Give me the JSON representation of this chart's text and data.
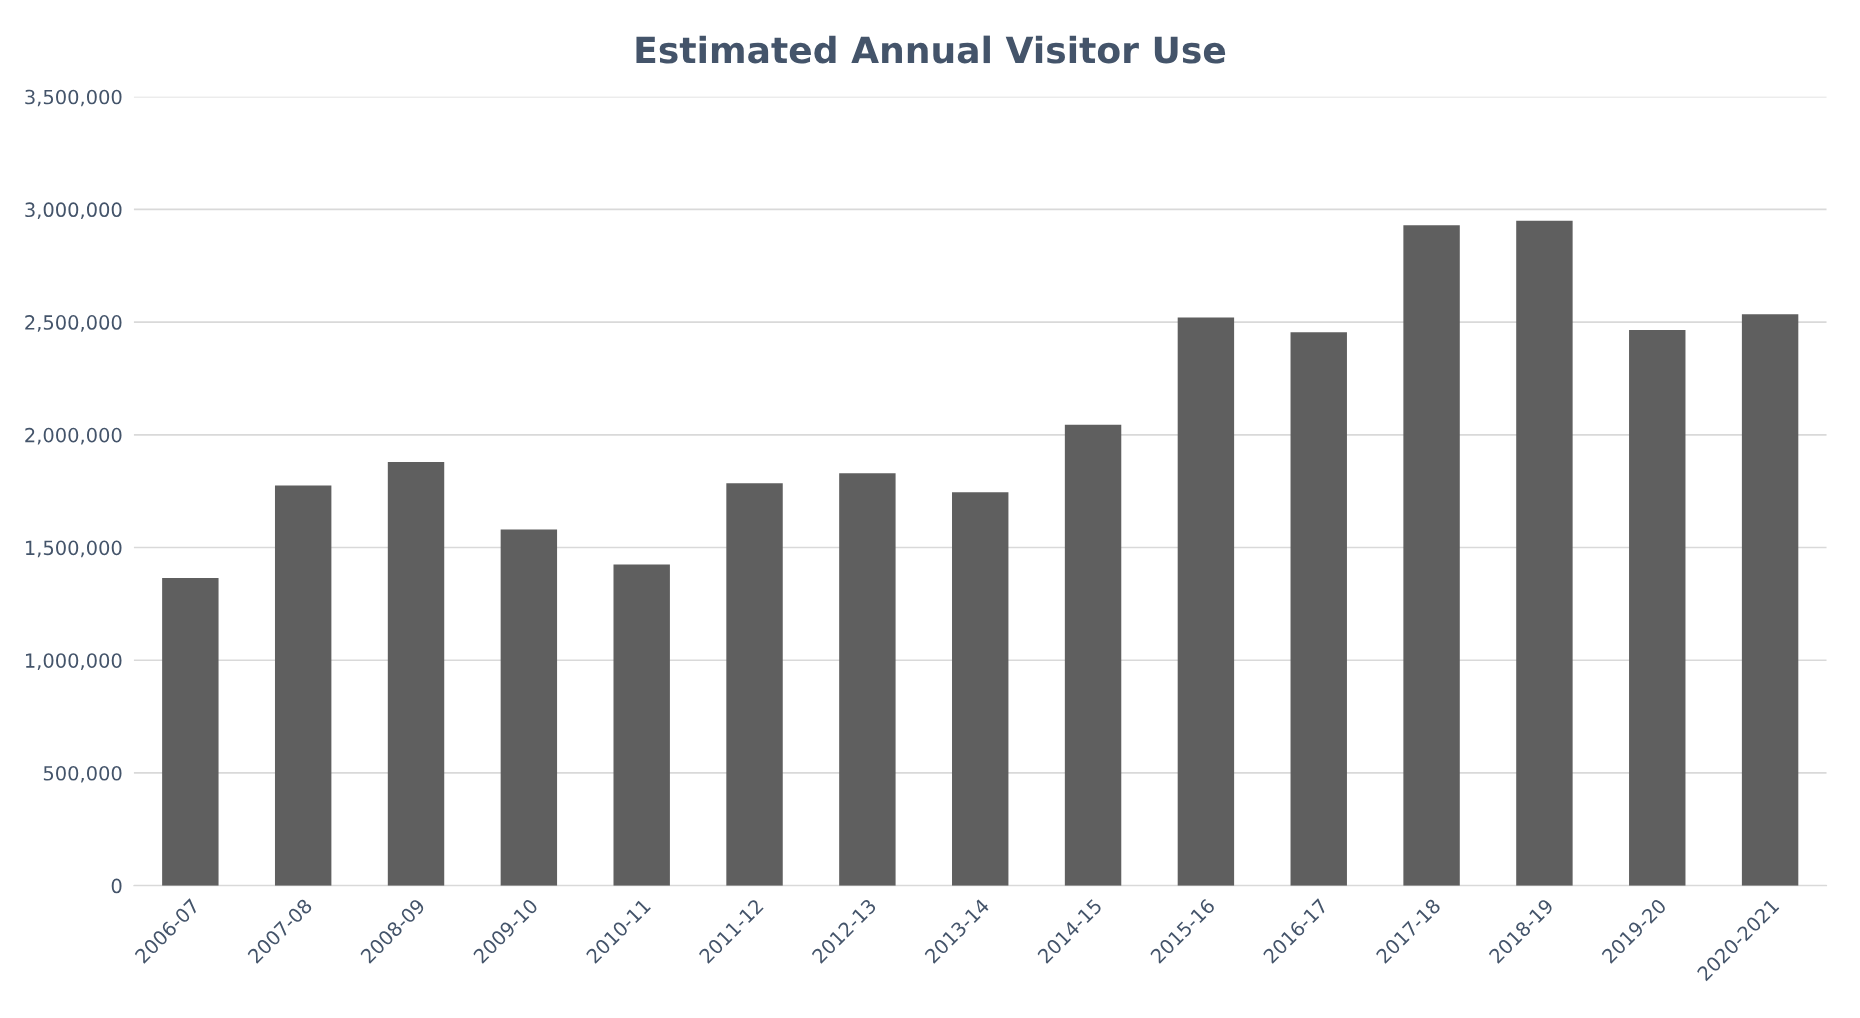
{
  "chart_data": {
    "type": "bar",
    "title": "Estimated Annual Visitor Use",
    "categories": [
      "2006-07",
      "2007-08",
      "2008-09",
      "2009-10",
      "2010-11",
      "2011-12",
      "2012-13",
      "2013-14",
      "2014-15",
      "2015-16",
      "2016-17",
      "2017-18",
      "2018-19",
      "2019-20",
      "2020-2021"
    ],
    "values": [
      1365000,
      1775000,
      1880000,
      1580000,
      1425000,
      1785000,
      1830000,
      1745000,
      2045000,
      2520000,
      2455000,
      2930000,
      2950000,
      2465000,
      2535000
    ],
    "color": "#5f5f5f",
    "ylim": [
      0,
      3500000
    ],
    "yticks": [
      {
        "value": 0,
        "label": "0"
      },
      {
        "value": 500000,
        "label": "500,000"
      },
      {
        "value": 1000000,
        "label": "1,000,000"
      },
      {
        "value": 1500000,
        "label": "1,500,000"
      },
      {
        "value": 2000000,
        "label": "2,000,000"
      },
      {
        "value": 2500000,
        "label": "2,500,000"
      },
      {
        "value": 3000000,
        "label": "3,000,000"
      },
      {
        "value": 3500000,
        "label": "3,500,000"
      }
    ],
    "grid": "y"
  }
}
